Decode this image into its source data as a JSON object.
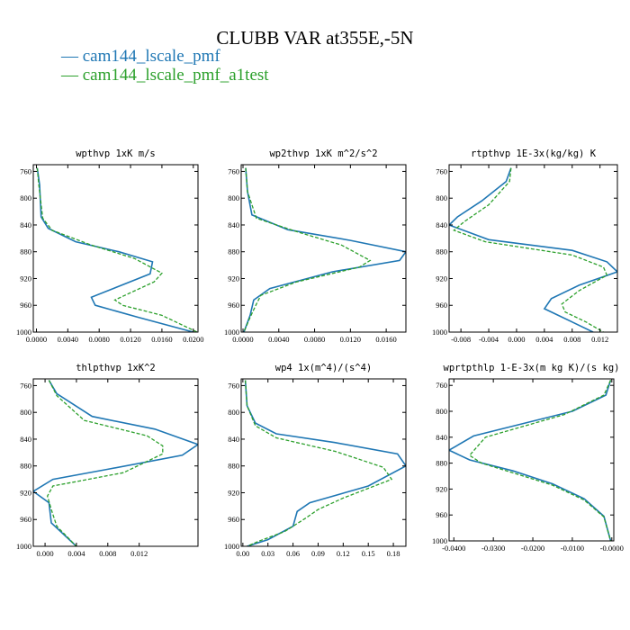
{
  "title": "CLUBB VAR at355E,-5N",
  "legend": [
    {
      "label": "cam144_lscale_pmf",
      "color": "#1f77b4"
    },
    {
      "label": "cam144_lscale_pmf_a1test",
      "color": "#2ca02c"
    }
  ],
  "chart_data": [
    {
      "type": "line",
      "title": "wpthvp  1xK m/s",
      "xlim": [
        -0.0004,
        0.0206
      ],
      "xticks": [
        0.0,
        0.004,
        0.008,
        0.012,
        0.016,
        0.02
      ],
      "xtick_labels": [
        "0.0000",
        "0.0040",
        "0.0080",
        "0.0120",
        "0.0160",
        "0.0200"
      ],
      "ylim": [
        1000,
        750
      ],
      "yticks": [
        760,
        800,
        840,
        880,
        920,
        960,
        1000
      ],
      "series": [
        {
          "name": "cam144_lscale_pmf",
          "x": [
            0.0001,
            0.0004,
            0.0006,
            0.0015,
            0.005,
            0.0105,
            0.0148,
            0.0145,
            0.007,
            0.0075,
            0.013,
            0.02
          ],
          "y": [
            755,
            780,
            828,
            845,
            865,
            880,
            895,
            913,
            948,
            960,
            978,
            1000
          ]
        },
        {
          "name": "cam144_lscale_pmf_a1test",
          "x": [
            0.0001,
            0.0003,
            0.0008,
            0.002,
            0.007,
            0.0125,
            0.016,
            0.015,
            0.01,
            0.011,
            0.016,
            0.0205
          ],
          "y": [
            755,
            780,
            830,
            848,
            870,
            890,
            912,
            925,
            952,
            960,
            975,
            1000
          ]
        }
      ]
    },
    {
      "type": "line",
      "title": "wp2thvp  1xK m^2/s^2",
      "xlim": [
        -0.0002,
        0.0182
      ],
      "xticks": [
        0.0,
        0.004,
        0.008,
        0.012,
        0.016
      ],
      "xtick_labels": [
        "0.0000",
        "0.0040",
        "0.0080",
        "0.0120",
        "0.0160"
      ],
      "ylim": [
        1000,
        750
      ],
      "yticks": [
        760,
        800,
        840,
        880,
        920,
        960,
        1000
      ],
      "series": [
        {
          "name": "cam144_lscale_pmf",
          "x": [
            0.0003,
            0.0005,
            0.001,
            0.005,
            0.012,
            0.0182,
            0.0175,
            0.01,
            0.003,
            0.0012,
            0.0008,
            0.0001
          ],
          "y": [
            755,
            790,
            825,
            847,
            863,
            880,
            893,
            910,
            935,
            952,
            975,
            1000
          ]
        },
        {
          "name": "cam144_lscale_pmf_a1test",
          "x": [
            0.0003,
            0.0005,
            0.0015,
            0.006,
            0.011,
            0.0142,
            0.013,
            0.006,
            0.002,
            0.0015,
            0.0008,
            0.0001
          ],
          "y": [
            755,
            790,
            830,
            850,
            870,
            893,
            903,
            925,
            945,
            958,
            978,
            1000
          ]
        }
      ]
    },
    {
      "type": "line",
      "title": "rtpthvp  1E-3x(kg/kg) K",
      "xlim": [
        -0.0097,
        0.0145
      ],
      "xticks": [
        -0.008,
        -0.004,
        0.0,
        0.004,
        0.008,
        0.012
      ],
      "xtick_labels": [
        "-0.008",
        "-0.004",
        "0.000",
        "0.004",
        "0.008",
        "0.012"
      ],
      "ylim": [
        1000,
        750
      ],
      "yticks": [
        760,
        800,
        840,
        880,
        920,
        960,
        1000
      ],
      "series": [
        {
          "name": "cam144_lscale_pmf",
          "x": [
            -0.0008,
            -0.0015,
            -0.005,
            -0.0085,
            -0.0097,
            -0.004,
            0.008,
            0.013,
            0.0145,
            0.009,
            0.005,
            0.004,
            0.008,
            0.011
          ],
          "y": [
            755,
            775,
            804,
            828,
            840,
            862,
            878,
            895,
            910,
            930,
            950,
            965,
            985,
            1000
          ]
        },
        {
          "name": "cam144_lscale_pmf_a1test",
          "x": [
            -0.0008,
            -0.001,
            -0.004,
            -0.0075,
            -0.009,
            -0.0045,
            0.008,
            0.0125,
            0.013,
            0.009,
            0.0065,
            0.007,
            0.01,
            0.0125
          ],
          "y": [
            755,
            775,
            810,
            835,
            848,
            865,
            885,
            903,
            915,
            938,
            958,
            970,
            985,
            1000
          ]
        }
      ]
    },
    {
      "type": "line",
      "title": "thlpthvp  1xK^2",
      "xlim": [
        -0.0015,
        0.0195
      ],
      "xticks": [
        0.0,
        0.004,
        0.008,
        0.012
      ],
      "xtick_labels": [
        "0.000",
        "0.004",
        "0.008",
        "0.012"
      ],
      "ylim": [
        1000,
        750
      ],
      "yticks": [
        760,
        800,
        840,
        880,
        920,
        960,
        1000
      ],
      "series": [
        {
          "name": "cam144_lscale_pmf",
          "x": [
            0.0005,
            0.0015,
            0.006,
            0.014,
            0.0195,
            0.0175,
            0.008,
            0.001,
            -0.0015,
            0.0005,
            0.0008,
            0.004
          ],
          "y": [
            752,
            772,
            806,
            825,
            848,
            864,
            885,
            900,
            918,
            935,
            965,
            1000
          ]
        },
        {
          "name": "cam144_lscale_pmf_a1test",
          "x": [
            0.0005,
            0.0015,
            0.005,
            0.013,
            0.015,
            0.015,
            0.01,
            0.001,
            0.0003,
            0.0008,
            0.0015,
            0.004
          ],
          "y": [
            752,
            775,
            812,
            835,
            850,
            862,
            890,
            910,
            925,
            945,
            970,
            1000
          ]
        }
      ]
    },
    {
      "type": "line",
      "title": "wp4  1x(m^4)/(s^4)",
      "xlim": [
        -0.002,
        0.195
      ],
      "xticks": [
        0.0,
        0.03,
        0.06,
        0.09,
        0.12,
        0.15,
        0.18
      ],
      "xtick_labels": [
        "0.00",
        "0.03",
        "0.06",
        "0.09",
        "0.12",
        "0.15",
        "0.18"
      ],
      "ylim": [
        1000,
        750
      ],
      "yticks": [
        760,
        800,
        840,
        880,
        920,
        960,
        1000
      ],
      "series": [
        {
          "name": "cam144_lscale_pmf",
          "x": [
            0.003,
            0.005,
            0.015,
            0.04,
            0.11,
            0.185,
            0.195,
            0.15,
            0.08,
            0.065,
            0.06,
            0.03,
            0.005
          ],
          "y": [
            752,
            790,
            816,
            832,
            845,
            862,
            880,
            910,
            935,
            948,
            970,
            990,
            1000
          ]
        },
        {
          "name": "cam144_lscale_pmf_a1test",
          "x": [
            0.003,
            0.005,
            0.015,
            0.04,
            0.11,
            0.168,
            0.178,
            0.12,
            0.09,
            0.075,
            0.05,
            0.02,
            0.005
          ],
          "y": [
            752,
            790,
            820,
            838,
            858,
            882,
            900,
            928,
            945,
            958,
            978,
            992,
            1000
          ]
        }
      ]
    },
    {
      "type": "line",
      "title": "wprtpthlp  1-E-3x(m kg K)/(s kg)",
      "xlim": [
        -0.0412,
        0.0005
      ],
      "xticks": [
        -0.04,
        -0.03,
        -0.02,
        -0.01,
        0.0
      ],
      "xtick_labels": [
        "-0.0400",
        "-0.0300",
        "-0.0200",
        "-0.0100",
        "-0.0000"
      ],
      "ylim": [
        1000,
        750
      ],
      "yticks": [
        760,
        800,
        840,
        880,
        920,
        960,
        1000
      ],
      "series": [
        {
          "name": "cam144_lscale_pmf",
          "x": [
            -0.0003,
            -0.0015,
            -0.01,
            -0.035,
            -0.0412,
            -0.036,
            -0.025,
            -0.015,
            -0.007,
            -0.002,
            -0.0003
          ],
          "y": [
            752,
            775,
            800,
            838,
            860,
            875,
            892,
            912,
            935,
            962,
            1000
          ]
        },
        {
          "name": "cam144_lscale_pmf_a1test",
          "x": [
            -0.0003,
            -0.002,
            -0.012,
            -0.032,
            -0.036,
            -0.033,
            -0.025,
            -0.015,
            -0.007,
            -0.002,
            -0.0003
          ],
          "y": [
            752,
            775,
            805,
            840,
            868,
            880,
            895,
            914,
            937,
            963,
            1000
          ]
        }
      ]
    }
  ]
}
